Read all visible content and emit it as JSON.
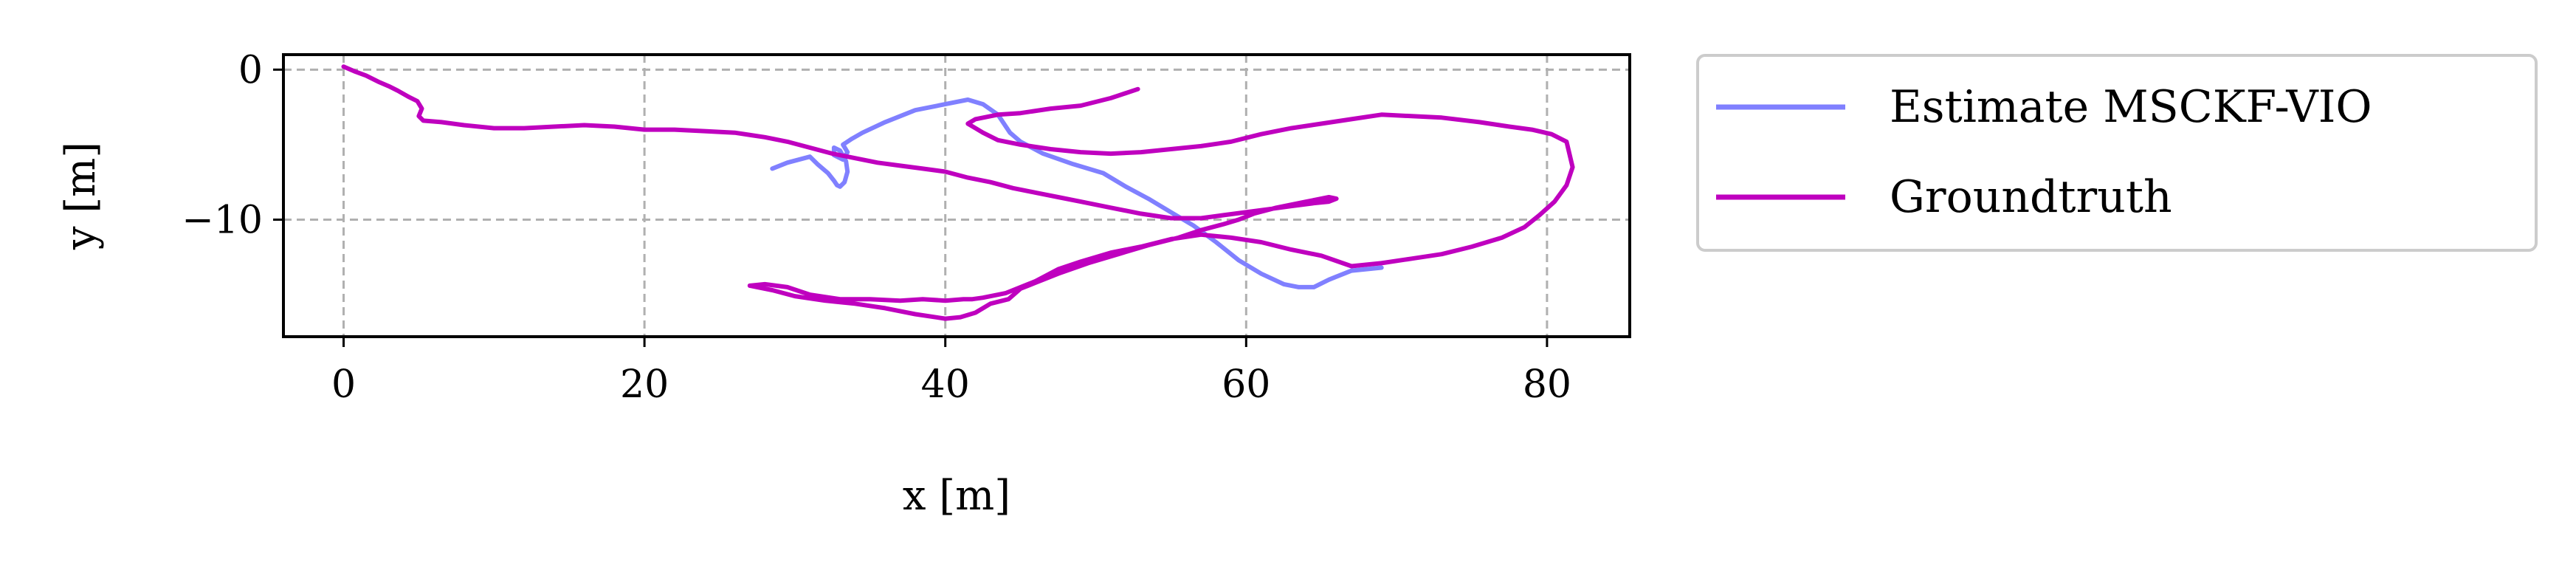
{
  "chart_data": {
    "type": "line",
    "title": "",
    "xlabel": "x [m]",
    "ylabel": "y [m]",
    "xlim": [
      -4,
      85.5
    ],
    "ylim": [
      -17.8,
      1.0
    ],
    "xticks": [
      0,
      20,
      40,
      60,
      80
    ],
    "yticks": [
      0,
      -10
    ],
    "xtick_labels": [
      "0",
      "20",
      "40",
      "60",
      "80"
    ],
    "ytick_labels": [
      "0",
      "−10"
    ],
    "grid": true,
    "legend_position": "outside-right",
    "series": [
      {
        "name": "Estimate MSCKF-VIO",
        "color": "#8080ff",
        "x": [
          28.5,
          29.5,
          31,
          31.5,
          32.2,
          32.6,
          32.8,
          33.0,
          33.3,
          33.5,
          33.4,
          33.0,
          32.6,
          32.6,
          33.2,
          33.5,
          33.2,
          33.8,
          34.5,
          36,
          38,
          40,
          41.5,
          42.5,
          43.5,
          44.3,
          45.0,
          46.5,
          48.5,
          50.5,
          52.0,
          53.5,
          55.0,
          56.5,
          58.0,
          59.5,
          61.0,
          62.5,
          63.5,
          64.5,
          65.5,
          66.0,
          67.0,
          69.0
        ],
        "y": [
          -6.6,
          -6.2,
          -5.8,
          -6.3,
          -6.9,
          -7.4,
          -7.7,
          -7.8,
          -7.5,
          -6.8,
          -6.1,
          -5.4,
          -5.2,
          -5.7,
          -6.0,
          -5.5,
          -5.0,
          -4.6,
          -4.2,
          -3.5,
          -2.7,
          -2.3,
          -2.0,
          -2.3,
          -3.0,
          -4.2,
          -4.8,
          -5.6,
          -6.3,
          -6.9,
          -7.8,
          -8.6,
          -9.5,
          -10.4,
          -11.5,
          -12.7,
          -13.6,
          -14.3,
          -14.5,
          -14.5,
          -14.0,
          -13.8,
          -13.4,
          -13.2
        ]
      },
      {
        "name": "Groundtruth",
        "color": "#bf00bf",
        "x": [
          0,
          0.7,
          1.5,
          2.3,
          3.0,
          3.6,
          4.3,
          4.9,
          5.2,
          5.0,
          5.3,
          6.5,
          8.0,
          10,
          12,
          14,
          16,
          18,
          20,
          22,
          24,
          26,
          28,
          29.5,
          31.0,
          32.5,
          34.0,
          35.5,
          37.0,
          38.5,
          40.0,
          41.5,
          43.0,
          44.5,
          46.0,
          47.5,
          49.0,
          51.0,
          53.0,
          55.0,
          57.0,
          58.5,
          60.0,
          61.5,
          63.0,
          64.5,
          65.5,
          66.0,
          65.5,
          64.0,
          62.0,
          60.5,
          59.5,
          58.5,
          57.0,
          55.5,
          53.5,
          51.5,
          49.5,
          47.5,
          46.0,
          45.0,
          44.2,
          43.0,
          42.0,
          41.0,
          40.0,
          38.0,
          36.0,
          34.0,
          32.0,
          30.0,
          28.5,
          27.0,
          28.0,
          29.5,
          31.0,
          33.0,
          35.0,
          37.0,
          38.5,
          40.0,
          41.2,
          41.8,
          42.5,
          44.0,
          46.0,
          47.5,
          49.0,
          51.0,
          53.0,
          55.0,
          57.0,
          59.0,
          61.0,
          63.0,
          65.0,
          67.0,
          69.0,
          71.0,
          73.0,
          75.0,
          77.0,
          78.5,
          79.5,
          80.5,
          81.3,
          81.7,
          81.3,
          80.3,
          79.0,
          77.5,
          75.5,
          73.0,
          71.0,
          69.0,
          67.0,
          65.0,
          63.0,
          61.0,
          59.0,
          57.0,
          55.0,
          53.0,
          51.0,
          49.0,
          47.0,
          45.0,
          43.5,
          42.5,
          42.0,
          41.5,
          42.0,
          43.5,
          45.0,
          47.0,
          49.0,
          51.0,
          52.8
        ],
        "y": [
          0.2,
          -0.1,
          -0.4,
          -0.8,
          -1.1,
          -1.4,
          -1.8,
          -2.1,
          -2.6,
          -3.1,
          -3.4,
          -3.5,
          -3.7,
          -3.9,
          -3.9,
          -3.8,
          -3.7,
          -3.8,
          -4.0,
          -4.0,
          -4.1,
          -4.2,
          -4.5,
          -4.8,
          -5.2,
          -5.6,
          -5.9,
          -6.2,
          -6.4,
          -6.6,
          -6.8,
          -7.2,
          -7.5,
          -7.9,
          -8.2,
          -8.5,
          -8.8,
          -9.2,
          -9.6,
          -9.9,
          -9.9,
          -9.7,
          -9.5,
          -9.3,
          -9.1,
          -8.9,
          -8.8,
          -8.6,
          -8.5,
          -8.8,
          -9.2,
          -9.6,
          -10.0,
          -10.3,
          -10.7,
          -11.2,
          -11.7,
          -12.3,
          -12.9,
          -13.6,
          -14.2,
          -14.6,
          -15.3,
          -15.6,
          -16.2,
          -16.5,
          -16.6,
          -16.3,
          -15.9,
          -15.6,
          -15.4,
          -15.1,
          -14.7,
          -14.4,
          -14.3,
          -14.5,
          -15.0,
          -15.3,
          -15.3,
          -15.4,
          -15.3,
          -15.4,
          -15.3,
          -15.3,
          -15.2,
          -14.9,
          -14.1,
          -13.3,
          -12.8,
          -12.2,
          -11.8,
          -11.3,
          -11.0,
          -11.2,
          -11.5,
          -12.0,
          -12.4,
          -13.1,
          -12.9,
          -12.6,
          -12.3,
          -11.8,
          -11.2,
          -10.5,
          -9.7,
          -8.8,
          -7.7,
          -6.5,
          -4.8,
          -4.3,
          -4.0,
          -3.8,
          -3.5,
          -3.2,
          -3.1,
          -3.0,
          -3.3,
          -3.6,
          -3.9,
          -4.3,
          -4.8,
          -5.1,
          -5.3,
          -5.5,
          -5.6,
          -5.5,
          -5.3,
          -5.0,
          -4.7,
          -4.2,
          -3.9,
          -3.6,
          -3.3,
          -3.0,
          -2.9,
          -2.6,
          -2.4,
          -1.9,
          -1.3
        ]
      }
    ]
  }
}
